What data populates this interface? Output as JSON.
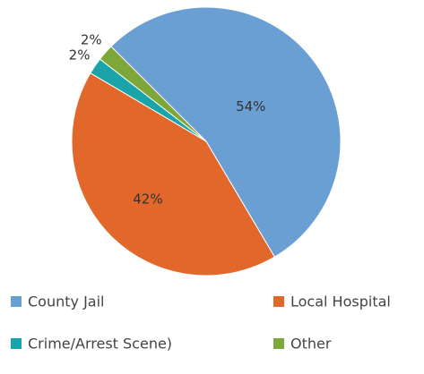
{
  "chart_data": {
    "type": "pie",
    "categories": [
      "County Jail",
      "Local Hospital",
      "Crime/Arrest Scene)",
      "Other"
    ],
    "values": [
      54,
      42,
      2,
      2
    ],
    "value_labels": [
      "54%",
      "42%",
      "2%",
      "2%"
    ],
    "colors": [
      "#6a9fd4",
      "#e2672a",
      "#1aa3a8",
      "#7ea73a"
    ]
  }
}
